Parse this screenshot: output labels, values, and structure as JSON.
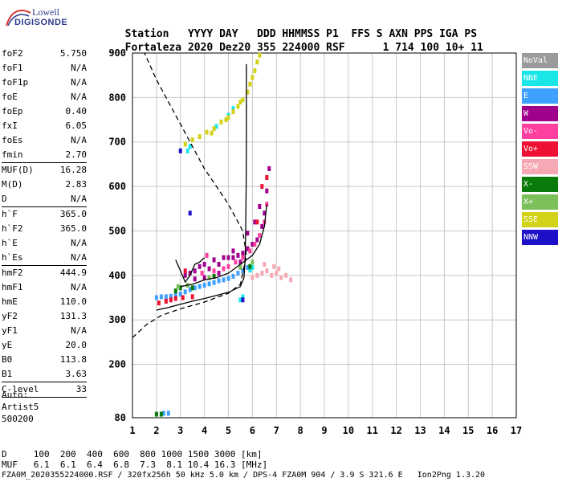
{
  "logo": {
    "line1": "Lowell",
    "line2": "DIGISONDE"
  },
  "header": {
    "row1": [
      "Station",
      "YYYY",
      "DAY",
      "DDD",
      "HHMMSS",
      "P1",
      "FFS",
      "S",
      "AXN",
      "PPS",
      "IGA",
      "PS"
    ],
    "row2": [
      "Fortaleza",
      "2020",
      "Dez20",
      "355",
      "224000",
      "RSF",
      "1",
      "714",
      "100",
      "10+",
      "11"
    ]
  },
  "params": [
    {
      "k": "foF2",
      "v": "5.750"
    },
    {
      "k": "foF1",
      "v": "N/A"
    },
    {
      "k": "foF1p",
      "v": "N/A"
    },
    {
      "k": "foE",
      "v": "N/A"
    },
    {
      "k": "foEp",
      "v": "0.40"
    },
    {
      "k": "fxI",
      "v": "6.05"
    },
    {
      "k": "foEs",
      "v": "N/A"
    },
    {
      "k": "fmin",
      "v": "2.70"
    },
    {
      "k": "MUF(D)",
      "v": "16.28"
    },
    {
      "k": "M(D)",
      "v": "2.83"
    },
    {
      "k": "D",
      "v": "N/A"
    },
    {
      "k": "h`F",
      "v": "365.0"
    },
    {
      "k": "h`F2",
      "v": "365.0"
    },
    {
      "k": "h`E",
      "v": "N/A"
    },
    {
      "k": "h`Es",
      "v": "N/A"
    },
    {
      "k": "hmF2",
      "v": "444.9"
    },
    {
      "k": "hmF1",
      "v": "N/A"
    },
    {
      "k": "hmE",
      "v": "110.0"
    },
    {
      "k": "yF2",
      "v": "131.3"
    },
    {
      "k": "yF1",
      "v": "N/A"
    },
    {
      "k": "yE",
      "v": "20.0"
    },
    {
      "k": "B0",
      "v": "113.8"
    },
    {
      "k": "B1",
      "v": "3.63"
    },
    {
      "k": "C-level",
      "v": "33"
    }
  ],
  "auto": {
    "line1": "Auto:",
    "line2": "Artist5",
    "line3": "500200"
  },
  "footer": {
    "d_row": "D     100  200  400  600  800 1000 1500 3000 [km]",
    "muf_row": "MUF   6.1  6.1  6.4  6.8  7.3  8.1 10.4 16.3 [MHz]",
    "file_row": "FZA0M_2020355224000.RSF / 320fx256h 50 kHz 5.0 km / DPS-4 FZA0M 904 / 3.9 S 321.6 E   Ion2Png 1.3.20"
  },
  "legend": [
    {
      "label": "NoVal",
      "color": "#9a9a9a"
    },
    {
      "label": "NNE",
      "color": "#19e6e6"
    },
    {
      "label": "E",
      "color": "#3ea0ff"
    },
    {
      "label": "W",
      "color": "#a0008c"
    },
    {
      "label": "Vo-",
      "color": "#ff3fa0"
    },
    {
      "label": "Vo+",
      "color": "#ee1133"
    },
    {
      "label": "SSW",
      "color": "#f6a9b4"
    },
    {
      "label": "X-",
      "color": "#0a7a0a"
    },
    {
      "label": "X+",
      "color": "#7cc05a"
    },
    {
      "label": "SSE",
      "color": "#d2d218"
    },
    {
      "label": "NNW",
      "color": "#1c10c8"
    }
  ],
  "chart_data": {
    "type": "scatter",
    "xlabel": "",
    "ylabel": "",
    "xlim": [
      1,
      17
    ],
    "ylim": [
      80,
      900
    ],
    "xticks": [
      1,
      2,
      3,
      4,
      5,
      6,
      7,
      8,
      9,
      10,
      11,
      12,
      13,
      14,
      15,
      16,
      17
    ],
    "yticks": [
      80,
      200,
      300,
      400,
      500,
      600,
      700,
      800,
      900
    ],
    "grid": true,
    "series": [
      {
        "name": "NoVal",
        "color": "#9a9a9a",
        "points": []
      },
      {
        "name": "NNE",
        "color": "#19e6e6",
        "points": [
          [
            5.5,
            345
          ],
          [
            5.6,
            352
          ],
          [
            5.9,
            412
          ],
          [
            6.0,
            418
          ],
          [
            3.3,
            680
          ],
          [
            3.4,
            690
          ],
          [
            4.5,
            735
          ],
          [
            5.0,
            760
          ],
          [
            5.2,
            775
          ]
        ]
      },
      {
        "name": "E",
        "color": "#3ea0ff",
        "points": [
          [
            2.0,
            350
          ],
          [
            2.2,
            352
          ],
          [
            2.4,
            352
          ],
          [
            2.6,
            353
          ],
          [
            2.8,
            355
          ],
          [
            3.0,
            358
          ],
          [
            3.2,
            363
          ],
          [
            3.4,
            368
          ],
          [
            3.6,
            372
          ],
          [
            3.8,
            375
          ],
          [
            4.0,
            378
          ],
          [
            4.2,
            381
          ],
          [
            4.4,
            384
          ],
          [
            4.6,
            388
          ],
          [
            4.8,
            390
          ],
          [
            5.0,
            393
          ],
          [
            5.2,
            398
          ],
          [
            5.4,
            405
          ],
          [
            5.6,
            410
          ],
          [
            5.8,
            418
          ],
          [
            2.3,
            90
          ],
          [
            2.5,
            90
          ]
        ]
      },
      {
        "name": "W",
        "color": "#a0008c",
        "points": [
          [
            3.2,
            400
          ],
          [
            3.4,
            405
          ],
          [
            3.6,
            410
          ],
          [
            3.8,
            420
          ],
          [
            4.0,
            425
          ],
          [
            4.2,
            415
          ],
          [
            4.4,
            435
          ],
          [
            4.6,
            425
          ],
          [
            4.8,
            440
          ],
          [
            5.0,
            440
          ],
          [
            5.2,
            440
          ],
          [
            5.4,
            445
          ],
          [
            5.6,
            450
          ],
          [
            5.8,
            460
          ],
          [
            6.0,
            470
          ],
          [
            6.2,
            480
          ],
          [
            6.4,
            510
          ],
          [
            6.5,
            540
          ],
          [
            6.6,
            590
          ],
          [
            6.7,
            640
          ],
          [
            5.8,
            495
          ],
          [
            6.1,
            520
          ],
          [
            6.3,
            555
          ],
          [
            5.5,
            430
          ],
          [
            5.2,
            455
          ],
          [
            4.6,
            405
          ],
          [
            4.0,
            395
          ],
          [
            3.6,
            392
          ]
        ]
      },
      {
        "name": "Vo-",
        "color": "#ff3fa0",
        "points": [
          [
            5.0,
            420
          ],
          [
            5.3,
            430
          ],
          [
            5.6,
            440
          ],
          [
            5.9,
            455
          ],
          [
            6.1,
            470
          ],
          [
            6.3,
            490
          ],
          [
            6.5,
            520
          ],
          [
            6.6,
            560
          ],
          [
            4.4,
            410
          ],
          [
            4.8,
            415
          ],
          [
            3.9,
            405
          ],
          [
            4.1,
            445
          ]
        ]
      },
      {
        "name": "Vo+",
        "color": "#ee1133",
        "points": [
          [
            2.1,
            338
          ],
          [
            2.4,
            342
          ],
          [
            2.6,
            345
          ],
          [
            2.8,
            348
          ],
          [
            3.1,
            350
          ],
          [
            3.5,
            352
          ],
          [
            6.2,
            520
          ],
          [
            6.4,
            600
          ],
          [
            6.6,
            620
          ],
          [
            3.2,
            410
          ]
        ]
      },
      {
        "name": "SSW",
        "color": "#f6a9b4",
        "points": [
          [
            6.0,
            395
          ],
          [
            6.2,
            400
          ],
          [
            6.4,
            405
          ],
          [
            6.6,
            410
          ],
          [
            6.8,
            400
          ],
          [
            7.0,
            405
          ],
          [
            7.2,
            395
          ],
          [
            7.4,
            400
          ],
          [
            7.6,
            390
          ],
          [
            6.5,
            425
          ],
          [
            6.9,
            420
          ],
          [
            7.1,
            415
          ]
        ]
      },
      {
        "name": "X-",
        "color": "#0a7a0a",
        "points": [
          [
            2.8,
            365
          ],
          [
            3.0,
            372
          ],
          [
            3.5,
            372
          ],
          [
            4.4,
            398
          ],
          [
            5.9,
            420
          ],
          [
            2.0,
            88
          ],
          [
            2.2,
            88
          ]
        ]
      },
      {
        "name": "X+",
        "color": "#7cc05a",
        "points": [
          [
            2.9,
            375
          ],
          [
            3.3,
            378
          ],
          [
            4.2,
            395
          ],
          [
            5.5,
            418
          ],
          [
            6.0,
            430
          ]
        ]
      },
      {
        "name": "SSE",
        "color": "#d2d218",
        "points": [
          [
            3.2,
            695
          ],
          [
            3.5,
            705
          ],
          [
            3.8,
            712
          ],
          [
            4.1,
            722
          ],
          [
            4.4,
            730
          ],
          [
            4.7,
            745
          ],
          [
            5.0,
            755
          ],
          [
            5.2,
            768
          ],
          [
            5.4,
            780
          ],
          [
            5.6,
            795
          ],
          [
            5.8,
            812
          ],
          [
            5.9,
            830
          ],
          [
            6.0,
            845
          ],
          [
            6.1,
            860
          ],
          [
            6.2,
            880
          ],
          [
            6.3,
            895
          ],
          [
            4.3,
            720
          ],
          [
            4.9,
            750
          ],
          [
            5.5,
            790
          ]
        ]
      },
      {
        "name": "NNW",
        "color": "#1c10c8",
        "points": [
          [
            3.4,
            540
          ],
          [
            5.6,
            345
          ],
          [
            3.0,
            680
          ]
        ]
      }
    ],
    "curves": [
      {
        "name": "virtual-height-trace",
        "style": "solid",
        "points": [
          [
            2.0,
            322
          ],
          [
            2.5,
            328
          ],
          [
            3.0,
            335
          ],
          [
            3.5,
            342
          ],
          [
            4.0,
            348
          ],
          [
            4.5,
            355
          ],
          [
            5.0,
            362
          ],
          [
            5.5,
            375
          ],
          [
            5.65,
            395
          ],
          [
            5.7,
            440
          ],
          [
            5.72,
            500
          ],
          [
            5.74,
            600
          ],
          [
            5.75,
            700
          ],
          [
            5.75,
            800
          ],
          [
            5.75,
            875
          ]
        ]
      },
      {
        "name": "profile-trace",
        "style": "solid",
        "points": [
          [
            3.0,
            375
          ],
          [
            3.5,
            380
          ],
          [
            4.0,
            390
          ],
          [
            4.5,
            395
          ],
          [
            5.0,
            405
          ],
          [
            5.5,
            425
          ],
          [
            6.0,
            445
          ],
          [
            6.3,
            470
          ],
          [
            6.5,
            510
          ],
          [
            6.6,
            560
          ]
        ]
      },
      {
        "name": "profile-trace-early",
        "style": "solid",
        "points": [
          [
            2.8,
            435
          ],
          [
            3.0,
            410
          ],
          [
            3.2,
            385
          ],
          [
            3.4,
            400
          ],
          [
            3.6,
            425
          ],
          [
            3.8,
            430
          ],
          [
            4.0,
            440
          ]
        ]
      },
      {
        "name": "electron-density-profile",
        "style": "dashed",
        "points": [
          [
            1.0,
            260
          ],
          [
            1.6,
            290
          ],
          [
            2.2,
            310
          ],
          [
            3.0,
            325
          ],
          [
            4.0,
            340
          ],
          [
            5.0,
            360
          ],
          [
            5.5,
            380
          ],
          [
            5.75,
            445
          ],
          [
            5.6,
            500
          ],
          [
            5.0,
            560
          ],
          [
            4.5,
            600
          ],
          [
            4.0,
            640
          ],
          [
            3.5,
            690
          ],
          [
            3.0,
            740
          ],
          [
            2.5,
            790
          ],
          [
            2.0,
            840
          ],
          [
            1.5,
            900
          ]
        ]
      }
    ]
  }
}
